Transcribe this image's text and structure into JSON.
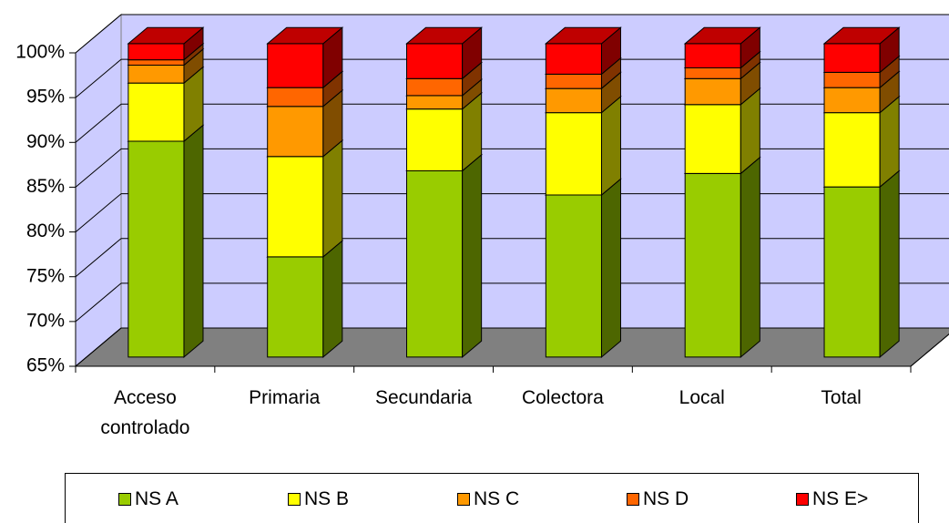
{
  "chart_data": {
    "type": "bar3d_stacked",
    "categories": [
      "Acceso controlado",
      "Primaria",
      "Secundaria",
      "Colectora",
      "Local",
      "Total"
    ],
    "series": [
      {
        "name": "NS A",
        "color": "#99cc00",
        "values": [
          89.1,
          76.2,
          85.8,
          83.1,
          85.5,
          84.0
        ]
      },
      {
        "name": "NS B",
        "color": "#ffff00",
        "values": [
          6.5,
          11.2,
          6.9,
          9.2,
          7.7,
          8.3
        ]
      },
      {
        "name": "NS C",
        "color": "#ff9900",
        "values": [
          2.0,
          5.6,
          1.5,
          2.7,
          2.9,
          2.8
        ]
      },
      {
        "name": "NS D",
        "color": "#ff6600",
        "values": [
          0.6,
          2.1,
          1.9,
          1.6,
          1.2,
          1.7
        ]
      },
      {
        "name": "NS E>",
        "color": "#ff0000",
        "values": [
          1.8,
          4.9,
          3.9,
          3.4,
          2.7,
          3.2
        ]
      }
    ],
    "ylim": [
      65,
      100
    ],
    "yticks": [
      {
        "value": 65,
        "label": "65%"
      },
      {
        "value": 70,
        "label": "70%"
      },
      {
        "value": 75,
        "label": "75%"
      },
      {
        "value": 80,
        "label": "80%"
      },
      {
        "value": 85,
        "label": "85%"
      },
      {
        "value": 90,
        "label": "90%"
      },
      {
        "value": 95,
        "label": "95%"
      },
      {
        "value": 100,
        "label": "100%"
      }
    ],
    "grid": true,
    "legend": "bottom"
  }
}
